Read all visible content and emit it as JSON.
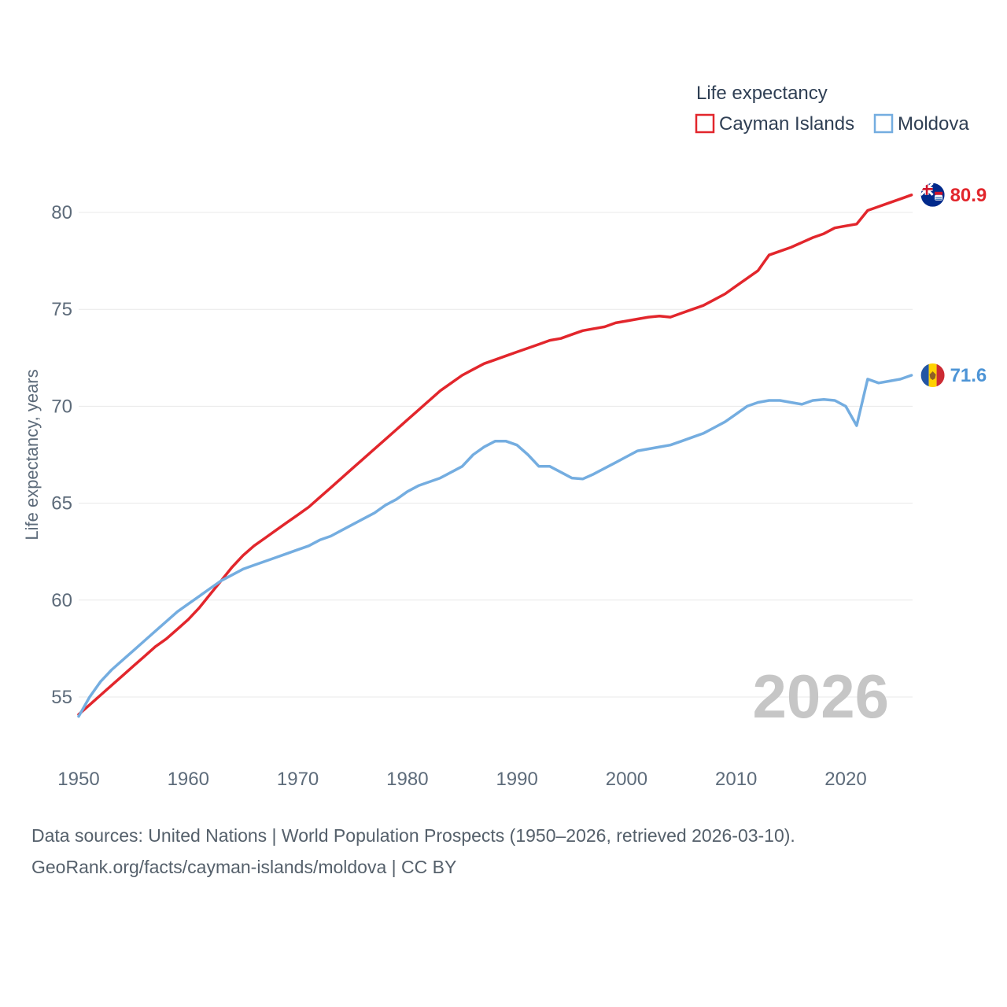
{
  "legend": {
    "title": "Life expectancy",
    "series": [
      {
        "label": "Cayman Islands",
        "color": "#e2262c"
      },
      {
        "label": "Moldova",
        "color": "#74ade0"
      }
    ]
  },
  "watermark": "2026",
  "ylabel": "Life expectancy, years",
  "footer": {
    "line1": "Data sources: United Nations | World Population Prospects (1950–2026, retrieved 2026-03-10).",
    "line2": "GeoRank.org/facts/cayman-islands/moldova | CC BY"
  },
  "chart_data": {
    "type": "line",
    "title": "Life expectancy",
    "xlabel": "",
    "ylabel": "Life expectancy, years",
    "x_start": 1950,
    "x_end": 2026,
    "x_step": 1,
    "ylim": [
      53.5,
      82
    ],
    "yticks": [
      55,
      60,
      65,
      70,
      75,
      80
    ],
    "xticks": [
      1950,
      1960,
      1970,
      1980,
      1990,
      2000,
      2010,
      2020
    ],
    "grid": "horizontal",
    "legend_position": "top-right",
    "end_labels": {
      "cayman": "80.9",
      "moldova": "71.6"
    },
    "series": [
      {
        "name": "Cayman Islands",
        "color": "#e2262c",
        "values": [
          54.1,
          54.6,
          55.1,
          55.6,
          56.1,
          56.6,
          57.1,
          57.6,
          58.0,
          58.5,
          59.0,
          59.6,
          60.3,
          61.0,
          61.7,
          62.3,
          62.8,
          63.2,
          63.6,
          64.0,
          64.4,
          64.8,
          65.3,
          65.8,
          66.3,
          66.8,
          67.3,
          67.8,
          68.3,
          68.8,
          69.3,
          69.8,
          70.3,
          70.8,
          71.2,
          71.6,
          71.9,
          72.2,
          72.4,
          72.6,
          72.8,
          73.0,
          73.2,
          73.4,
          73.5,
          73.7,
          73.9,
          74.0,
          74.1,
          74.3,
          74.4,
          74.5,
          74.6,
          74.65,
          74.6,
          74.8,
          75.0,
          75.2,
          75.5,
          75.8,
          76.2,
          76.6,
          77.0,
          77.8,
          78.0,
          78.2,
          78.45,
          78.7,
          78.9,
          79.2,
          79.3,
          79.4,
          80.1,
          80.3,
          80.5,
          80.7,
          80.9
        ]
      },
      {
        "name": "Moldova",
        "color": "#74ade0",
        "values": [
          54.0,
          55.0,
          55.8,
          56.4,
          56.9,
          57.4,
          57.9,
          58.4,
          58.9,
          59.4,
          59.8,
          60.2,
          60.6,
          61.0,
          61.3,
          61.6,
          61.8,
          62.0,
          62.2,
          62.4,
          62.6,
          62.8,
          63.1,
          63.3,
          63.6,
          63.9,
          64.2,
          64.5,
          64.9,
          65.2,
          65.6,
          65.9,
          66.1,
          66.3,
          66.6,
          66.9,
          67.5,
          67.9,
          68.2,
          68.2,
          68.0,
          67.5,
          66.9,
          66.9,
          66.6,
          66.3,
          66.25,
          66.5,
          66.8,
          67.1,
          67.4,
          67.7,
          67.8,
          67.9,
          68.0,
          68.2,
          68.4,
          68.6,
          68.9,
          69.2,
          69.6,
          70.0,
          70.2,
          70.3,
          70.3,
          70.2,
          70.1,
          70.3,
          70.35,
          70.3,
          70.0,
          69.0,
          71.4,
          71.2,
          71.3,
          71.4,
          71.6
        ]
      }
    ]
  }
}
